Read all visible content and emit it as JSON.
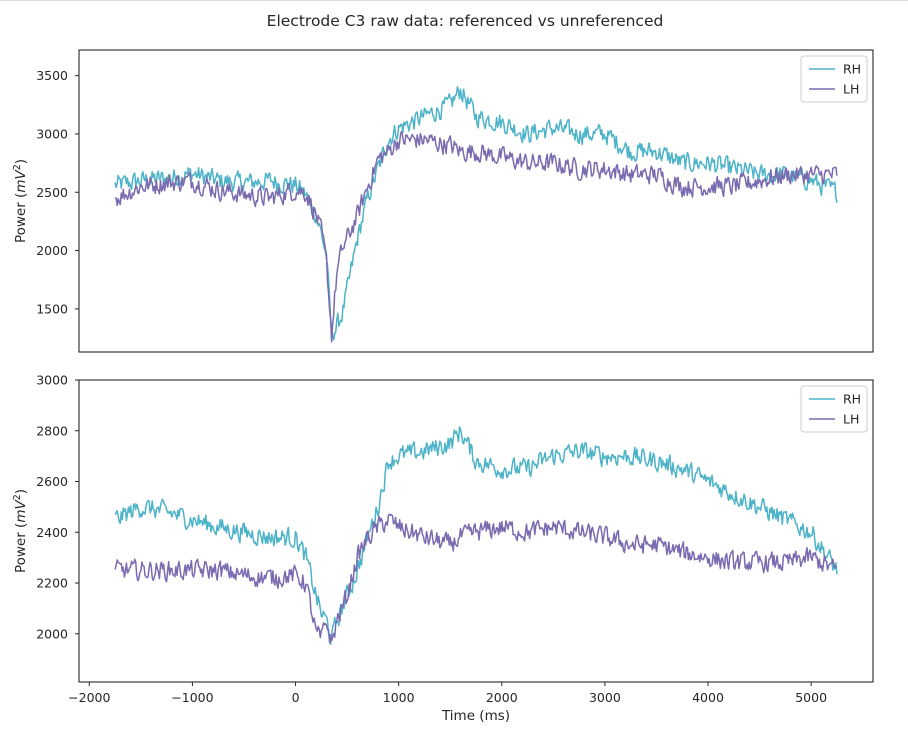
{
  "figure": {
    "title": "Electrode C3 raw data: referenced vs unreferenced"
  },
  "colors": {
    "RH": "#4db3c8",
    "LH": "#7a6aaf"
  },
  "chart_data": [
    {
      "type": "line",
      "title": "",
      "xlabel": "",
      "ylabel": "Power (mV²)",
      "xlim": [
        -2100,
        5600
      ],
      "ylim": [
        1130,
        3720
      ],
      "yticks": [
        1500,
        2000,
        2500,
        3000,
        3500
      ],
      "x_ticks_shown": false,
      "grid": false,
      "legend": "top-right",
      "x": [
        -1750,
        -1500,
        -1250,
        -1000,
        -750,
        -500,
        -250,
        0,
        100,
        200,
        250,
        300,
        350,
        400,
        450,
        500,
        600,
        700,
        800,
        900,
        1000,
        1250,
        1500,
        1600,
        1750,
        2000,
        2250,
        2500,
        2750,
        3000,
        3250,
        3500,
        3750,
        4000,
        4250,
        4500,
        4750,
        5000,
        5250
      ],
      "series": [
        {
          "name": "RH",
          "values": [
            2560,
            2600,
            2620,
            2660,
            2600,
            2580,
            2600,
            2560,
            2480,
            2300,
            2150,
            1950,
            1280,
            1350,
            1450,
            1650,
            2100,
            2450,
            2700,
            2950,
            3050,
            3150,
            3250,
            3380,
            3150,
            3100,
            3000,
            3050,
            3000,
            3000,
            2850,
            2850,
            2750,
            2750,
            2700,
            2650,
            2650,
            2600,
            2500
          ]
        },
        {
          "name": "LH",
          "values": [
            2450,
            2550,
            2580,
            2600,
            2520,
            2480,
            2450,
            2520,
            2500,
            2300,
            2150,
            1900,
            1280,
            1800,
            2000,
            2100,
            2300,
            2550,
            2780,
            2850,
            2950,
            2950,
            2900,
            2850,
            2850,
            2800,
            2750,
            2750,
            2700,
            2700,
            2650,
            2650,
            2550,
            2550,
            2550,
            2600,
            2650,
            2650,
            2650
          ]
        }
      ]
    },
    {
      "type": "line",
      "title": "",
      "xlabel": "Time (ms)",
      "ylabel": "Power (mV²)",
      "xlim": [
        -2100,
        5600
      ],
      "ylim": [
        1810,
        3000
      ],
      "xticks": [
        -2000,
        -1000,
        0,
        1000,
        2000,
        3000,
        4000,
        5000
      ],
      "yticks": [
        2000,
        2200,
        2400,
        2600,
        2800,
        3000
      ],
      "grid": false,
      "legend": "top-right",
      "x": [
        -1750,
        -1500,
        -1250,
        -1000,
        -750,
        -500,
        -250,
        0,
        100,
        200,
        250,
        300,
        350,
        400,
        450,
        500,
        600,
        700,
        800,
        900,
        1000,
        1250,
        1500,
        1600,
        1750,
        2000,
        2250,
        2500,
        2750,
        3000,
        3250,
        3500,
        3750,
        4000,
        4250,
        4500,
        4750,
        5000,
        5250
      ],
      "series": [
        {
          "name": "RH",
          "values": [
            2450,
            2500,
            2480,
            2450,
            2420,
            2400,
            2380,
            2380,
            2300,
            2150,
            2080,
            2050,
            1980,
            2050,
            2100,
            2150,
            2250,
            2380,
            2500,
            2680,
            2700,
            2720,
            2750,
            2800,
            2680,
            2650,
            2650,
            2700,
            2720,
            2700,
            2700,
            2680,
            2650,
            2600,
            2550,
            2500,
            2450,
            2400,
            2250
          ]
        },
        {
          "name": "LH",
          "values": [
            2250,
            2250,
            2250,
            2250,
            2250,
            2230,
            2220,
            2230,
            2200,
            2000,
            1980,
            2050,
            1960,
            2050,
            2100,
            2150,
            2300,
            2380,
            2420,
            2450,
            2420,
            2380,
            2350,
            2380,
            2400,
            2420,
            2400,
            2420,
            2400,
            2380,
            2350,
            2350,
            2320,
            2300,
            2280,
            2280,
            2280,
            2300,
            2250
          ]
        }
      ]
    }
  ]
}
